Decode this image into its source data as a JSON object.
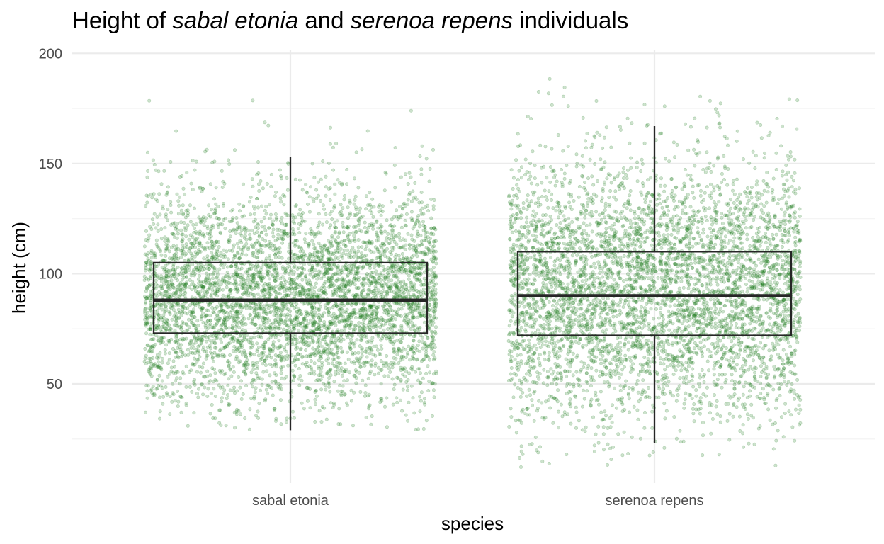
{
  "chart_data": {
    "type": "box",
    "title_parts": [
      {
        "text": "Height of ",
        "italic": false
      },
      {
        "text": "sabal etonia",
        "italic": true
      },
      {
        "text": " and ",
        "italic": false
      },
      {
        "text": "serenoa repens",
        "italic": true
      },
      {
        "text": " individuals",
        "italic": false
      }
    ],
    "xlabel": "species",
    "ylabel": "height (cm)",
    "categories": [
      "sabal etonia",
      "serenoa repens"
    ],
    "ylim": [
      5,
      203
    ],
    "yticks": [
      50,
      100,
      150,
      200
    ],
    "yminor": [
      25,
      75,
      125,
      175
    ],
    "grid": true,
    "point_color": "#1b7a1b",
    "box_color": "#262626",
    "boxes": [
      {
        "name": "sabal etonia",
        "whisker_low": 29,
        "q1": 73,
        "median": 88,
        "q3": 105,
        "whisker_high": 153
      },
      {
        "name": "serenoa repens",
        "whisker_low": 23,
        "q1": 72,
        "median": 90,
        "q3": 110,
        "whisker_high": 167
      }
    ],
    "jitter_points": {
      "sabal etonia": {
        "count": 5000,
        "mean": 89,
        "sd": 24,
        "min": 29,
        "max": 181
      },
      "serenoa repens": {
        "count": 5000,
        "mean": 92,
        "sd": 29,
        "min": 12,
        "max": 197
      }
    }
  }
}
